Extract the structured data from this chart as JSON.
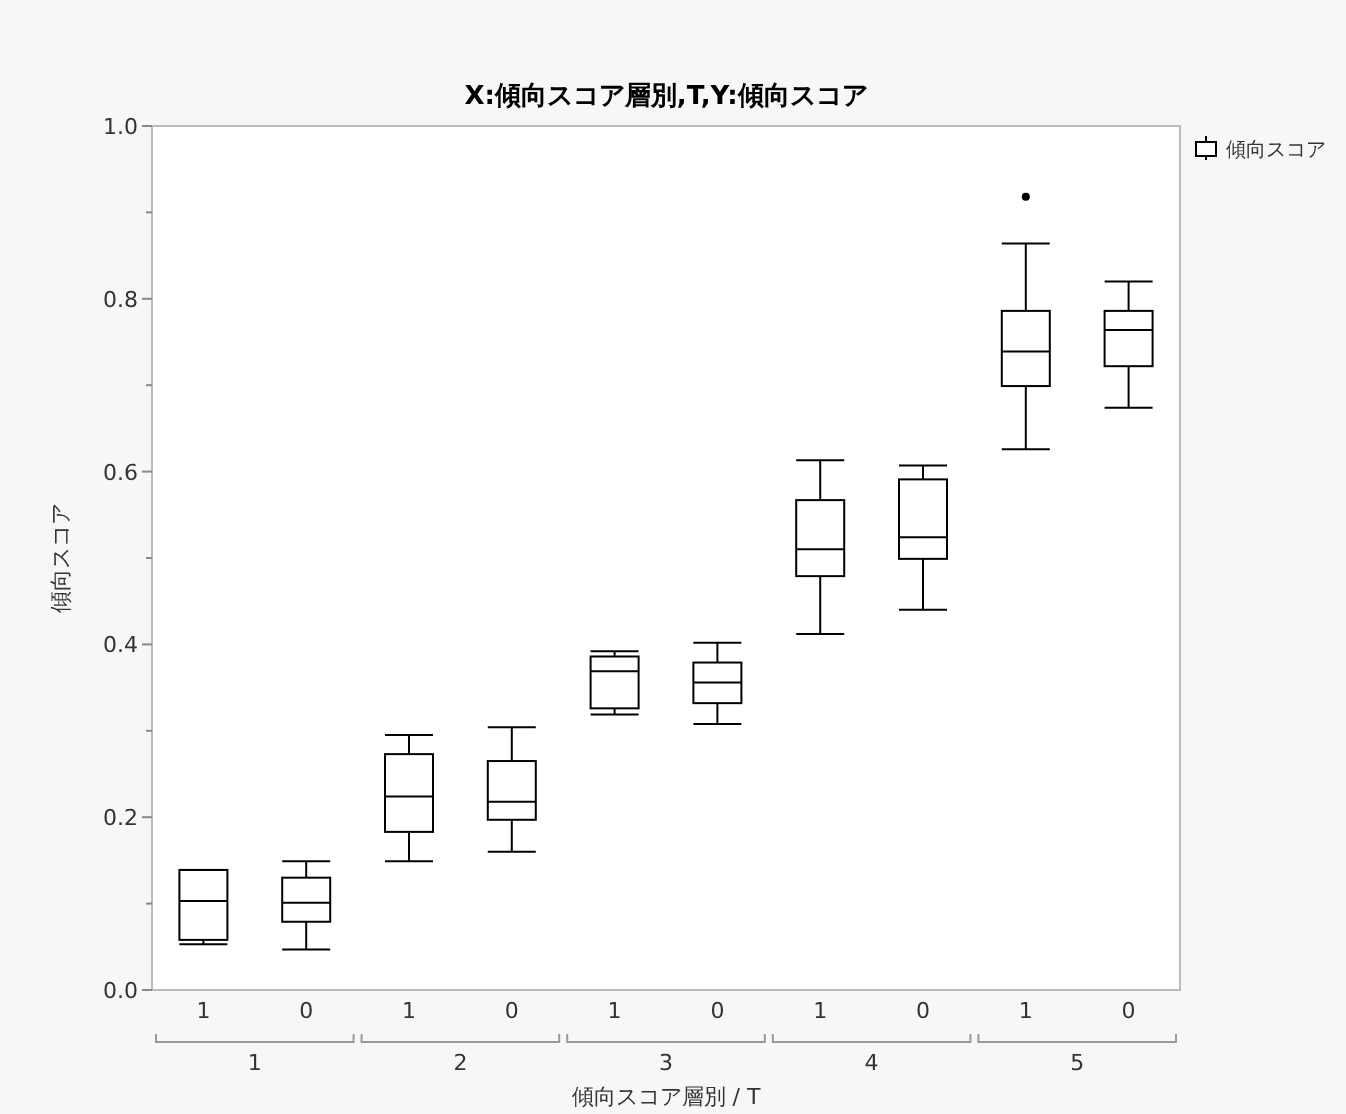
{
  "chart_data": {
    "type": "box",
    "title": "X:傾向スコア層別,T,Y:傾向スコア",
    "xlabel": "傾向スコア層別 / T",
    "ylabel": "傾向スコア",
    "categories": [
      "1",
      "0",
      "1",
      "0",
      "1",
      "0",
      "1",
      "0",
      "1",
      "0"
    ],
    "annotations": [
      "1",
      "2",
      "3",
      "4",
      "5"
    ],
    "series": [
      {
        "name": "傾向スコア",
        "color": "#000000",
        "boxes": [
          {
            "low": 0.053,
            "q1": 0.058,
            "median": 0.103,
            "q3": 0.139,
            "high": 0.139
          },
          {
            "low": 0.047,
            "q1": 0.079,
            "median": 0.101,
            "q3": 0.13,
            "high": 0.149
          },
          {
            "low": 0.149,
            "q1": 0.183,
            "median": 0.224,
            "q3": 0.273,
            "high": 0.295
          },
          {
            "low": 0.16,
            "q1": 0.197,
            "median": 0.218,
            "q3": 0.265,
            "high": 0.304
          },
          {
            "low": 0.319,
            "q1": 0.326,
            "median": 0.369,
            "q3": 0.386,
            "high": 0.392
          },
          {
            "low": 0.308,
            "q1": 0.332,
            "median": 0.356,
            "q3": 0.379,
            "high": 0.402
          },
          {
            "low": 0.412,
            "q1": 0.479,
            "median": 0.51,
            "q3": 0.567,
            "high": 0.613
          },
          {
            "low": 0.44,
            "q1": 0.499,
            "median": 0.524,
            "q3": 0.591,
            "high": 0.607
          },
          {
            "low": 0.626,
            "q1": 0.699,
            "median": 0.739,
            "q3": 0.786,
            "high": 0.864,
            "outliers": [
              0.918
            ]
          },
          {
            "low": 0.674,
            "q1": 0.722,
            "median": 0.764,
            "q3": 0.786,
            "high": 0.82
          }
        ]
      }
    ],
    "ylim": [
      0,
      1
    ],
    "yticks": [
      {
        "value": 0,
        "label": "0.0"
      },
      {
        "value": 0.1,
        "label": null
      },
      {
        "value": 0.2,
        "label": "0.2"
      },
      {
        "value": 0.3,
        "label": null
      },
      {
        "value": 0.4,
        "label": "0.4"
      },
      {
        "value": 0.5,
        "label": null
      },
      {
        "value": 0.6,
        "label": "0.6"
      },
      {
        "value": 0.7,
        "label": null
      },
      {
        "value": 0.8,
        "label": "0.8"
      },
      {
        "value": 0.9,
        "label": null
      },
      {
        "value": 1,
        "label": "1.0"
      }
    ],
    "legend": "top right",
    "grid": false
  }
}
